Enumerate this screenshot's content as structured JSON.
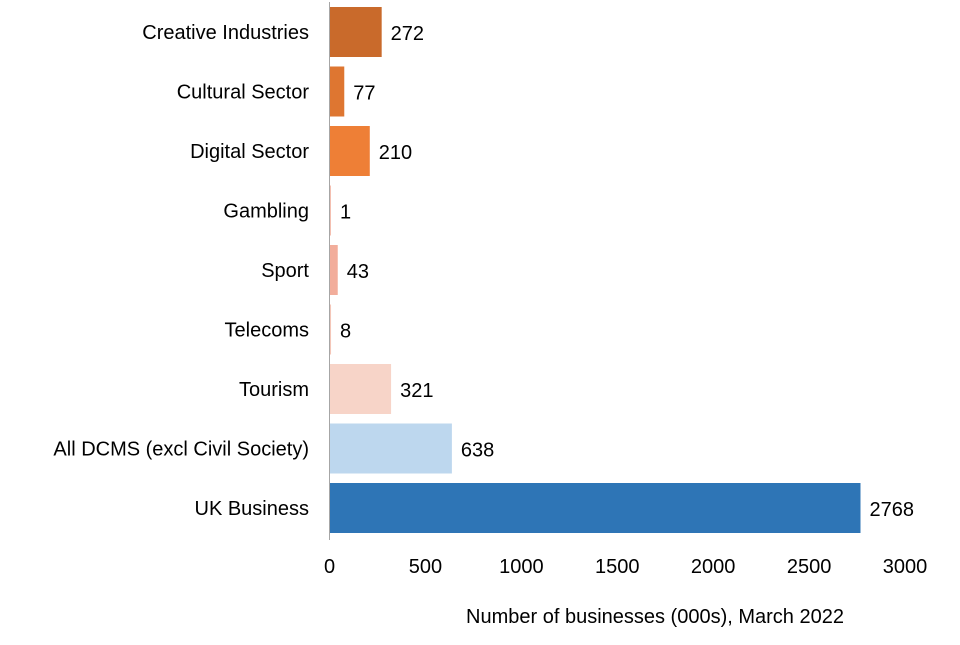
{
  "chart_data": {
    "type": "bar",
    "orientation": "horizontal",
    "categories": [
      "Creative Industries",
      "Cultural Sector",
      "Digital Sector",
      "Gambling",
      "Sport",
      "Telecoms",
      "Tourism",
      "All DCMS (excl Civil Society)",
      "UK Business"
    ],
    "values": [
      272,
      77,
      210,
      1,
      43,
      8,
      321,
      638,
      2768
    ],
    "colors": [
      "#C96A2B",
      "#DE7631",
      "#EE7F36",
      "#F4BFB0",
      "#F2AD9B",
      "#F4C6B8",
      "#F7D4C8",
      "#BDD7EE",
      "#2E75B6"
    ],
    "data_labels": [
      "272",
      "77",
      "210",
      "1",
      "43",
      "8",
      "321",
      "638",
      "2768"
    ],
    "title": "",
    "xlabel": "Number of businesses (000s), March 2022",
    "ylabel": "",
    "xlim": [
      0,
      3000
    ],
    "xticks": [
      0,
      500,
      1000,
      1500,
      2000,
      2500,
      3000
    ],
    "xtick_labels": [
      "0",
      "500",
      "1000",
      "1500",
      "2000",
      "2500",
      "3000"
    ],
    "grid": false,
    "legend": "none"
  }
}
